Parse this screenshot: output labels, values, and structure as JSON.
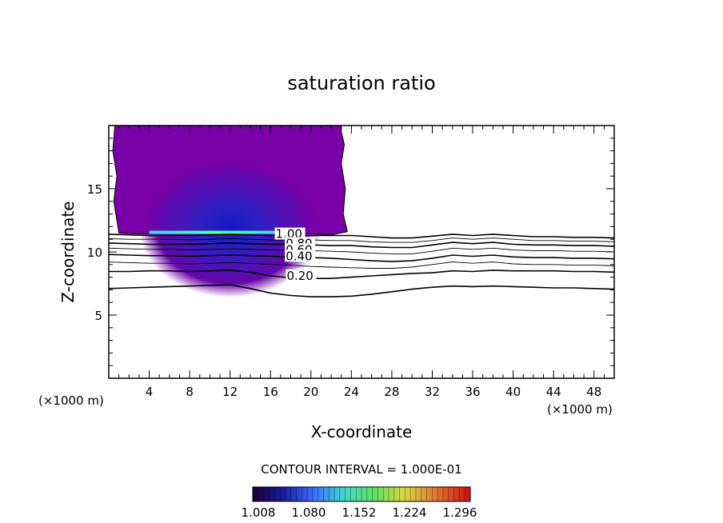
{
  "chart_data": {
    "type": "heatmap",
    "title": "saturation ratio",
    "xlabel": "X-coordinate",
    "ylabel": "Z-coordinate",
    "x_unit": "(×1000 m)",
    "z_unit": "(×1000 m)",
    "xlim": [
      0,
      50
    ],
    "ylim": [
      0,
      20
    ],
    "x_ticks": [
      4,
      8,
      12,
      16,
      20,
      24,
      28,
      32,
      36,
      40,
      44,
      48
    ],
    "y_ticks": [
      5,
      10,
      15
    ],
    "contour_interval_text": "CONTOUR INTERVAL = 1.000E-01",
    "colorbar": {
      "tick_labels": [
        "1.008",
        "1.080",
        "1.152",
        "1.224",
        "1.296"
      ],
      "colors": [
        "#1a0030",
        "#1a1aa0",
        "#3c6cff",
        "#40d8d0",
        "#60e060",
        "#d8d840",
        "#e07030",
        "#d01010"
      ]
    },
    "contour_labels": [
      "1.00",
      "0.80",
      "0.60",
      "0.40",
      "0.20"
    ],
    "contours": [
      {
        "level": 1.0,
        "x": [
          0,
          2,
          4,
          6,
          8,
          10,
          12,
          14,
          16,
          18,
          20,
          22,
          24,
          26,
          28,
          30,
          32,
          34,
          36,
          38,
          40,
          42,
          44,
          46,
          48,
          50
        ],
        "z": [
          11.4,
          11.35,
          11.3,
          11.3,
          11.3,
          11.35,
          11.4,
          11.35,
          11.3,
          11.3,
          11.3,
          11.3,
          11.3,
          11.2,
          11.1,
          11.1,
          11.25,
          11.4,
          11.3,
          11.4,
          11.3,
          11.2,
          11.2,
          11.15,
          11.15,
          11.1
        ]
      },
      {
        "level": 0.9,
        "x": [
          0,
          2,
          4,
          6,
          8,
          10,
          12,
          14,
          16,
          18,
          20,
          22,
          24,
          26,
          28,
          30,
          32,
          34,
          36,
          38,
          40,
          42,
          44,
          46,
          48,
          50
        ],
        "z": [
          11.05,
          11.0,
          11.0,
          11.0,
          10.95,
          11.0,
          11.05,
          11.0,
          10.95,
          10.95,
          10.95,
          10.9,
          10.9,
          10.8,
          10.75,
          10.75,
          10.9,
          11.1,
          11.0,
          11.1,
          11.0,
          10.9,
          10.9,
          10.85,
          10.85,
          10.8
        ]
      },
      {
        "level": 0.8,
        "x": [
          0,
          2,
          4,
          6,
          8,
          10,
          12,
          14,
          16,
          18,
          20,
          22,
          24,
          26,
          28,
          30,
          32,
          34,
          36,
          38,
          40,
          42,
          44,
          46,
          48,
          50
        ],
        "z": [
          10.7,
          10.65,
          10.6,
          10.6,
          10.6,
          10.65,
          10.7,
          10.65,
          10.6,
          10.6,
          10.55,
          10.5,
          10.5,
          10.4,
          10.35,
          10.35,
          10.55,
          10.75,
          10.65,
          10.75,
          10.6,
          10.55,
          10.55,
          10.5,
          10.5,
          10.45
        ]
      },
      {
        "level": 0.7,
        "x": [
          0,
          2,
          4,
          6,
          8,
          10,
          12,
          14,
          16,
          18,
          20,
          22,
          24,
          26,
          28,
          30,
          32,
          34,
          36,
          38,
          40,
          42,
          44,
          46,
          48,
          50
        ],
        "z": [
          10.3,
          10.25,
          10.2,
          10.2,
          10.15,
          10.2,
          10.25,
          10.2,
          10.15,
          10.15,
          10.1,
          10.05,
          10.0,
          9.9,
          9.85,
          9.85,
          10.05,
          10.3,
          10.2,
          10.3,
          10.15,
          10.1,
          10.1,
          10.05,
          10.05,
          10.0
        ]
      },
      {
        "level": 0.6,
        "x": [
          0,
          2,
          4,
          6,
          8,
          10,
          12,
          14,
          16,
          18,
          20,
          22,
          24,
          26,
          28,
          30,
          32,
          34,
          36,
          38,
          40,
          42,
          44,
          46,
          48,
          50
        ],
        "z": [
          9.8,
          9.75,
          9.7,
          9.7,
          9.65,
          9.7,
          9.75,
          9.7,
          9.65,
          9.6,
          9.55,
          9.5,
          9.4,
          9.3,
          9.25,
          9.3,
          9.5,
          9.75,
          9.65,
          9.75,
          9.6,
          9.55,
          9.55,
          9.5,
          9.5,
          9.45
        ]
      },
      {
        "level": 0.5,
        "x": [
          0,
          2,
          4,
          6,
          8,
          10,
          12,
          14,
          16,
          18,
          20,
          22,
          24,
          26,
          28,
          30,
          32,
          34,
          36,
          38,
          40,
          42,
          44,
          46,
          48,
          50
        ],
        "z": [
          9.2,
          9.15,
          9.1,
          9.1,
          9.05,
          9.1,
          9.15,
          9.1,
          9.0,
          8.95,
          8.85,
          8.8,
          8.75,
          8.7,
          8.7,
          8.8,
          9.0,
          9.2,
          9.1,
          9.2,
          9.05,
          9.0,
          9.0,
          8.95,
          8.95,
          8.9
        ]
      },
      {
        "level": 0.4,
        "x": [
          0,
          2,
          4,
          6,
          8,
          10,
          12,
          14,
          16,
          18,
          20,
          22,
          24,
          26,
          28,
          30,
          32,
          34,
          36,
          38,
          40,
          42,
          44,
          46,
          48,
          50
        ],
        "z": [
          8.45,
          8.45,
          8.5,
          8.5,
          8.45,
          8.5,
          8.55,
          8.4,
          8.1,
          7.95,
          7.9,
          7.9,
          8.0,
          8.1,
          8.2,
          8.3,
          8.35,
          8.5,
          8.45,
          8.55,
          8.5,
          8.5,
          8.5,
          8.45,
          8.45,
          8.4
        ]
      },
      {
        "level": 0.2,
        "x": [
          0,
          2,
          4,
          6,
          8,
          10,
          12,
          14,
          16,
          18,
          20,
          22,
          24,
          26,
          28,
          30,
          32,
          34,
          36,
          38,
          40,
          42,
          44,
          46,
          48,
          50
        ],
        "z": [
          7.1,
          7.15,
          7.2,
          7.25,
          7.3,
          7.35,
          7.4,
          7.1,
          6.75,
          6.55,
          6.45,
          6.45,
          6.5,
          6.65,
          6.85,
          7.05,
          7.2,
          7.3,
          7.25,
          7.3,
          7.25,
          7.2,
          7.15,
          7.15,
          7.1,
          7.05
        ]
      }
    ],
    "supersaturated_region": {
      "fill_color": "#7a00a8",
      "outline_x": [
        0.6,
        0.4,
        0.8,
        0.5,
        0.8,
        1.0,
        2.0,
        4.0,
        8.0,
        12.0,
        16.0,
        20.0,
        22.0,
        23.6,
        23.2,
        23.4,
        23.0,
        23.3,
        23.0,
        23.0
      ],
      "outline_z": [
        20.0,
        18.0,
        16.0,
        14.0,
        12.5,
        11.5,
        11.45,
        11.4,
        11.4,
        11.45,
        11.4,
        11.4,
        11.35,
        11.6,
        13.0,
        15.0,
        17.0,
        18.5,
        19.5,
        20.0
      ],
      "core": {
        "x_center": 12.0,
        "z_center": 11.9,
        "x_half_width": 9.0,
        "z_half_height": 5.5,
        "max_ratio": 1.1
      },
      "base_band": {
        "x_start": 4.0,
        "x_end": 17.0,
        "z": 11.55,
        "colors": [
          "#40d0ff",
          "#60ffb0"
        ]
      }
    }
  }
}
